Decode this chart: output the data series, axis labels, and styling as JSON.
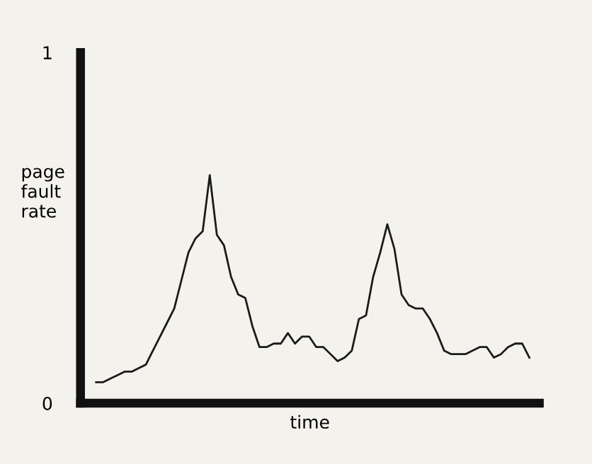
{
  "chart_data": {
    "type": "line",
    "xlabel": "time",
    "ylabel": "page\nfault\nrate",
    "categories": [
      null,
      null,
      null,
      null,
      null,
      null,
      null,
      null,
      null,
      null,
      null,
      null,
      null,
      null,
      null,
      null,
      null,
      null,
      null,
      null,
      null,
      null,
      null,
      null,
      null,
      null,
      null,
      null,
      null,
      null,
      null,
      null,
      null,
      null,
      null,
      null,
      null,
      null,
      null,
      null,
      null,
      null,
      null,
      null,
      null,
      null,
      null,
      null,
      null,
      null,
      null,
      null,
      null,
      null,
      null,
      null,
      null,
      null,
      null,
      null,
      null,
      null
    ],
    "series": [
      {
        "color": "#1a1a1a",
        "values": [
          0.06,
          0.06,
          0.07,
          0.08,
          0.09,
          0.09,
          0.1,
          0.11,
          0.15,
          0.19,
          0.23,
          0.27,
          0.35,
          0.43,
          0.47,
          0.49,
          0.65,
          0.48,
          0.45,
          0.36,
          0.31,
          0.3,
          0.22,
          0.16,
          0.16,
          0.17,
          0.17,
          0.2,
          0.17,
          0.19,
          0.19,
          0.16,
          0.16,
          0.14,
          0.12,
          0.13,
          0.15,
          0.24,
          0.25,
          0.36,
          0.43,
          0.51,
          0.44,
          0.31,
          0.28,
          0.27,
          0.27,
          0.24,
          0.2,
          0.15,
          0.14,
          0.14,
          0.14,
          0.15,
          0.16,
          0.16,
          0.13,
          0.14,
          0.16,
          0.17,
          0.17,
          0.13
        ]
      }
    ],
    "ylim": [
      0,
      1
    ],
    "yticks": [
      0,
      1
    ],
    "tick_labels": "y",
    "grid": false,
    "legend": false,
    "marker": "none",
    "line_style": "solid"
  }
}
